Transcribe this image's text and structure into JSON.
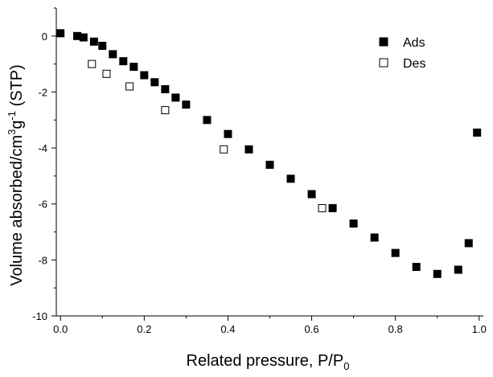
{
  "chart_data": {
    "type": "scatter",
    "xlabel": "Related pressure, P/P",
    "xlabel_sub": "0",
    "ylabel_main": "Volume absorbed/cm",
    "ylabel_sup1": "3",
    "ylabel_mid": "g",
    "ylabel_sup2": "-1",
    "ylabel_end": " (STP)",
    "xlim": [
      -0.01,
      1.01
    ],
    "ylim": [
      -10,
      1
    ],
    "xticks": [
      0.0,
      0.2,
      0.4,
      0.6,
      0.8,
      1.0
    ],
    "xtick_labels": [
      "0.0",
      "0.2",
      "0.4",
      "0.6",
      "0.8",
      "1.0"
    ],
    "yticks": [
      0,
      -2,
      -4,
      -6,
      -8,
      -10
    ],
    "ytick_labels": [
      "0",
      "-2",
      "-4",
      "-6",
      "-8",
      "-10"
    ],
    "legend_position": "top-right",
    "series": [
      {
        "name": "Ads",
        "marker": "filled-square",
        "color": "#000000",
        "x": [
          0.0,
          0.04,
          0.055,
          0.08,
          0.1,
          0.125,
          0.15,
          0.175,
          0.2,
          0.225,
          0.25,
          0.275,
          0.3,
          0.35,
          0.4,
          0.45,
          0.5,
          0.55,
          0.6,
          0.65,
          0.7,
          0.75,
          0.8,
          0.85,
          0.9,
          0.95,
          0.975,
          0.995
        ],
        "y": [
          0.1,
          0.0,
          -0.05,
          -0.2,
          -0.35,
          -0.65,
          -0.9,
          -1.1,
          -1.4,
          -1.65,
          -1.9,
          -2.2,
          -2.45,
          -3.0,
          -3.5,
          -4.05,
          -4.6,
          -5.1,
          -5.65,
          -6.15,
          -6.7,
          -7.2,
          -7.75,
          -8.25,
          -8.5,
          -8.35,
          -7.4,
          -3.45
        ]
      },
      {
        "name": "Des",
        "marker": "open-square",
        "color": "#000000",
        "x": [
          0.075,
          0.11,
          0.165,
          0.25,
          0.39,
          0.625
        ],
        "y": [
          -1.0,
          -1.35,
          -1.8,
          -2.65,
          -4.05,
          -6.15
        ]
      }
    ]
  }
}
